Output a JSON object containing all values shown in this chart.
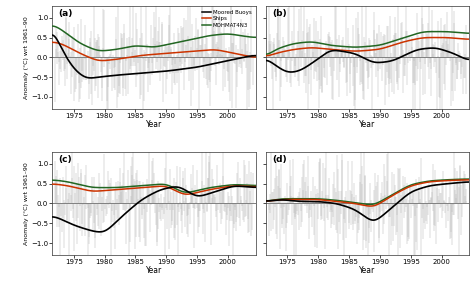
{
  "panels": [
    "(a)",
    "(b)",
    "(c)",
    "(d)"
  ],
  "ylabel": "Anomaly (°C) wrt 1961–90",
  "xlabel": "Year",
  "ylim": [
    -1.3,
    1.3
  ],
  "yticks": [
    -1.0,
    -0.5,
    0.0,
    0.5,
    1.0
  ],
  "xlim": [
    1971.5,
    2004.5
  ],
  "xticks": [
    1975,
    1980,
    1985,
    1990,
    1995,
    2000
  ],
  "legend_labels": [
    "Moored Buoys",
    "Ships",
    "MOHMAT4N3"
  ],
  "line_colors": {
    "buoys": "#000000",
    "ships": "#cc3300",
    "mohmat": "#226622"
  },
  "noise_color": "#b0b0b0",
  "zero_line_color": "#808080",
  "background": "#f0f0f0"
}
